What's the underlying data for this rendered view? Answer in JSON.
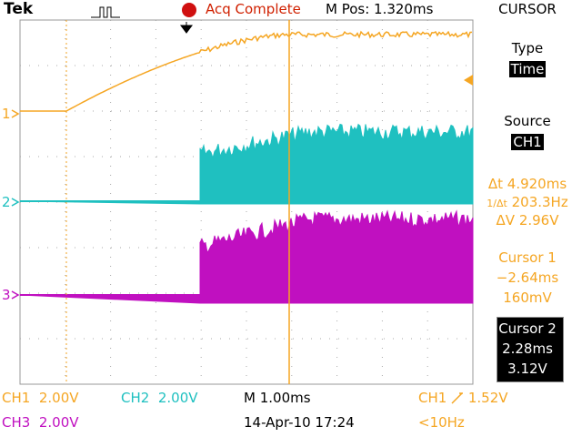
{
  "header": {
    "brand": "Tek",
    "status": "Acq Complete",
    "position": "M Pos: 1.320ms",
    "menu": "CURSOR"
  },
  "side_menu": {
    "type_label": "Type",
    "type_value": "Time",
    "source_label": "Source",
    "source_value": "CH1",
    "delta_t_label": "Δt",
    "delta_t": "4.920ms",
    "inverse_delta_t_label": "1/Δt",
    "inverse_delta_t": "203.3Hz",
    "delta_v_label": "ΔV",
    "delta_v": "2.96V",
    "cursor1": {
      "label": "Cursor 1",
      "time": "−2.64ms",
      "voltage": "160mV"
    },
    "cursor2": {
      "label": "Cursor 2",
      "time": "2.28ms",
      "voltage": "3.12V"
    }
  },
  "channels": [
    {
      "marker": "1"
    },
    {
      "marker": "2"
    },
    {
      "marker": "3"
    }
  ],
  "footer": {
    "ch1": {
      "name": "CH1",
      "scale": "2.00V"
    },
    "ch2": {
      "name": "CH2",
      "scale": "2.00V"
    },
    "ch3": {
      "name": "CH3",
      "scale": "2.00V"
    },
    "timebase": "M 1.00ms",
    "date": "14-Apr-10 17:24",
    "trigger": {
      "source": "CH1",
      "level": "1.52V"
    },
    "frequency": "<10Hz"
  }
}
